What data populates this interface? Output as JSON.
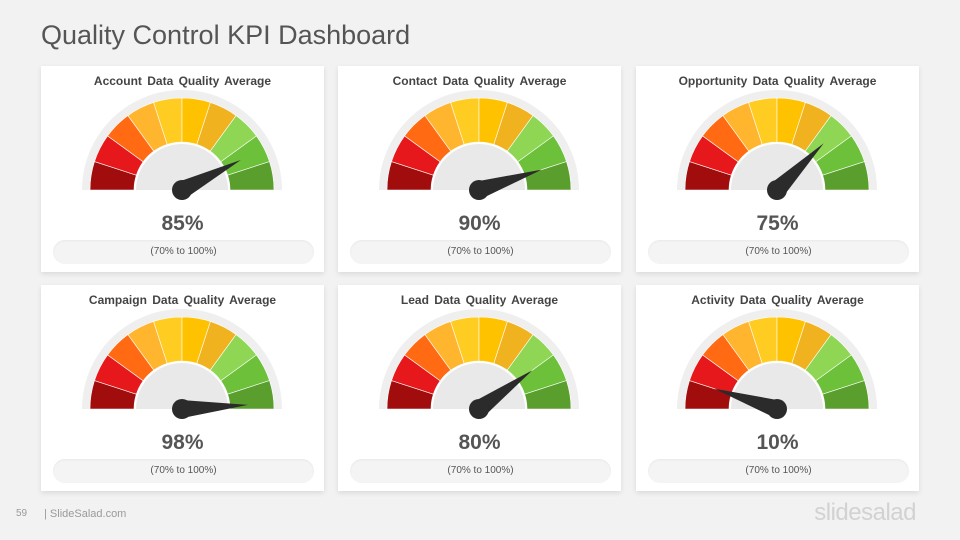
{
  "title": "Quality Control KPI Dashboard",
  "footer": {
    "page_number": "59",
    "site": "| SlideSalad.com",
    "logo": "slidesalad"
  },
  "colors": {
    "segments": [
      "#a10d0d",
      "#e6181c",
      "#ff6a13",
      "#ffb52e",
      "#ffcc22",
      "#ffc200",
      "#f0b21e",
      "#8ed653",
      "#6cc03a",
      "#5a9e2d"
    ],
    "needle": "#2b2b2b",
    "track": "#efefef"
  },
  "chart_data": [
    {
      "type": "gauge",
      "title": "Account  Data Quality Average",
      "value": 85,
      "value_label": "85%",
      "range_label": "(70% to 100%)",
      "min": 0,
      "max": 100
    },
    {
      "type": "gauge",
      "title": "Contact  Data Quality  Average",
      "value": 90,
      "value_label": "90%",
      "range_label": "(70% to 100%)",
      "min": 0,
      "max": 100
    },
    {
      "type": "gauge",
      "title": "Opportunity  Data Quality  Average",
      "value": 75,
      "value_label": "75%",
      "range_label": "(70% to 100%)",
      "min": 0,
      "max": 100
    },
    {
      "type": "gauge",
      "title": "Campaign  Data Quality Average",
      "value": 98,
      "value_label": "98%",
      "range_label": "(70% to 100%)",
      "min": 0,
      "max": 100
    },
    {
      "type": "gauge",
      "title": "Lead Data Quality  Average",
      "value": 80,
      "value_label": "80%",
      "range_label": "(70% to 100%)",
      "min": 0,
      "max": 100
    },
    {
      "type": "gauge",
      "title": "Activity  Data Quality Average",
      "value": 10,
      "value_label": "10%",
      "range_label": "(70% to 100%)",
      "min": 0,
      "max": 100
    }
  ]
}
